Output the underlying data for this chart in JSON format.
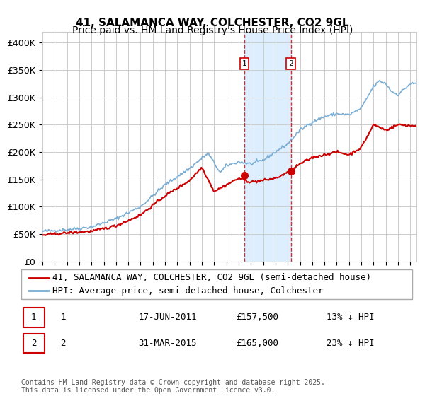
{
  "title": "41, SALAMANCA WAY, COLCHESTER, CO2 9GL",
  "subtitle": "Price paid vs. HM Land Registry's House Price Index (HPI)",
  "xlabel": "",
  "ylabel": "",
  "ylim": [
    0,
    420000
  ],
  "yticks": [
    0,
    50000,
    100000,
    150000,
    200000,
    250000,
    300000,
    350000,
    400000
  ],
  "ytick_labels": [
    "£0",
    "£50K",
    "£100K",
    "£150K",
    "£200K",
    "£250K",
    "£300K",
    "£350K",
    "£400K"
  ],
  "xlim_start": 1995.0,
  "xlim_end": 2025.5,
  "hpi_color": "#7aadd4",
  "price_color": "#cc0000",
  "sale1_date": 2011.46,
  "sale1_price": 157500,
  "sale1_label": "1",
  "sale2_date": 2015.25,
  "sale2_price": 165000,
  "sale2_label": "2",
  "shade_color": "#ddeeff",
  "dashed_line_color": "#cc0000",
  "grid_color": "#cccccc",
  "background_color": "#ffffff",
  "legend1_label": "41, SALAMANCA WAY, COLCHESTER, CO2 9GL (semi-detached house)",
  "legend2_label": "HPI: Average price, semi-detached house, Colchester",
  "table_row1": [
    "1",
    "17-JUN-2011",
    "£157,500",
    "13% ↓ HPI"
  ],
  "table_row2": [
    "2",
    "31-MAR-2015",
    "£165,000",
    "23% ↓ HPI"
  ],
  "footer": "Contains HM Land Registry data © Crown copyright and database right 2025.\nThis data is licensed under the Open Government Licence v3.0.",
  "title_fontsize": 11,
  "subtitle_fontsize": 10,
  "tick_fontsize": 9,
  "legend_fontsize": 9
}
